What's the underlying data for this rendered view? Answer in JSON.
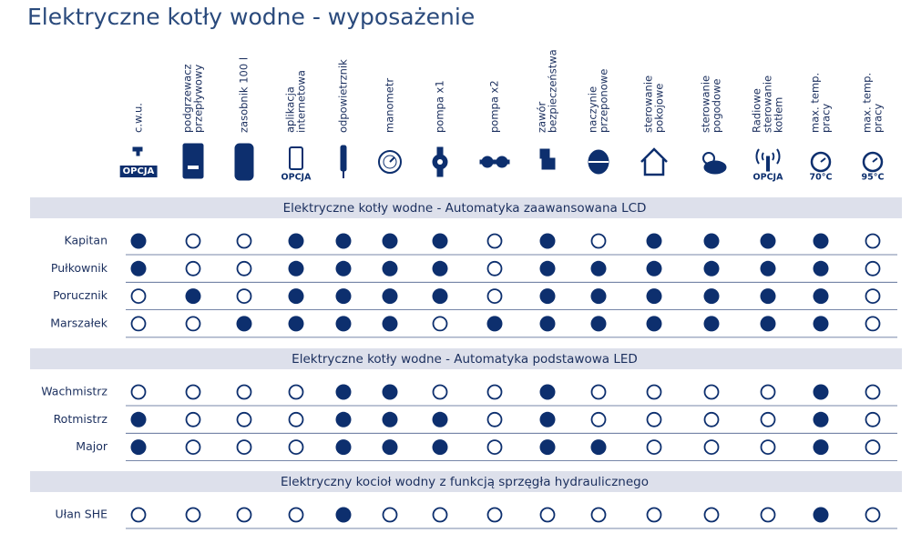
{
  "title": "Elektryczne kotły wodne - wyposażenie",
  "columns": [
    {
      "lines": [
        "c.w.u."
      ],
      "icon_label": "OPCJA"
    },
    {
      "lines": [
        "podgrzewacz",
        "przepływowy"
      ]
    },
    {
      "lines": [
        "zasobnik 100 l"
      ]
    },
    {
      "lines": [
        "aplikacja",
        "internetowa"
      ],
      "icon_label": "OPCJA"
    },
    {
      "lines": [
        "odpowietrznik"
      ]
    },
    {
      "lines": [
        "manometr"
      ]
    },
    {
      "lines": [
        "pompa x1"
      ]
    },
    {
      "lines": [
        "pompa x2"
      ]
    },
    {
      "lines": [
        "zawór",
        "bezpieczeństwa"
      ]
    },
    {
      "lines": [
        "naczynie",
        "przeponowe"
      ]
    },
    {
      "lines": [
        "sterowanie",
        "pokojowe"
      ]
    },
    {
      "lines": [
        "sterowanie",
        "pogodowe"
      ]
    },
    {
      "lines": [
        "Radiowe",
        "sterowanie",
        "kotłem"
      ],
      "icon_label": "OPCJA"
    },
    {
      "lines": [
        "max. temp.",
        "pracy"
      ],
      "icon_label": "70°C"
    },
    {
      "lines": [
        "max. temp.",
        "pracy"
      ],
      "icon_label": "95°C"
    }
  ],
  "sections": [
    {
      "title": "Elektryczne kotły wodne - Automatyka zaawansowana LCD",
      "rows": [
        {
          "name": "Kapitan",
          "values": [
            true,
            false,
            false,
            true,
            true,
            true,
            true,
            false,
            true,
            false,
            true,
            true,
            true,
            true,
            false
          ]
        },
        {
          "name": "Pułkownik",
          "values": [
            true,
            false,
            false,
            true,
            true,
            true,
            true,
            false,
            true,
            true,
            true,
            true,
            true,
            true,
            false
          ]
        },
        {
          "name": "Porucznik",
          "values": [
            false,
            true,
            false,
            true,
            true,
            true,
            true,
            false,
            true,
            true,
            true,
            true,
            true,
            true,
            false
          ]
        },
        {
          "name": "Marszałek",
          "values": [
            false,
            false,
            true,
            true,
            true,
            true,
            false,
            true,
            true,
            true,
            true,
            true,
            true,
            true,
            false
          ]
        }
      ]
    },
    {
      "title": "Elektryczne kotły wodne - Automatyka podstawowa LED",
      "rows": [
        {
          "name": "Wachmistrz",
          "values": [
            false,
            false,
            false,
            false,
            true,
            true,
            false,
            false,
            true,
            false,
            false,
            false,
            false,
            true,
            false
          ]
        },
        {
          "name": "Rotmistrz",
          "values": [
            true,
            false,
            false,
            false,
            true,
            true,
            true,
            false,
            true,
            false,
            false,
            false,
            false,
            true,
            false
          ]
        },
        {
          "name": "Major",
          "values": [
            true,
            false,
            false,
            false,
            true,
            true,
            true,
            false,
            true,
            true,
            false,
            false,
            false,
            true,
            false
          ]
        }
      ]
    },
    {
      "title": "Elektryczny kocioł wodny z funkcją sprzęgła hydraulicznego",
      "rows": [
        {
          "name": "Ułan SHE",
          "values": [
            false,
            false,
            false,
            false,
            true,
            false,
            false,
            false,
            false,
            false,
            false,
            false,
            false,
            true,
            false
          ]
        }
      ]
    }
  ]
}
